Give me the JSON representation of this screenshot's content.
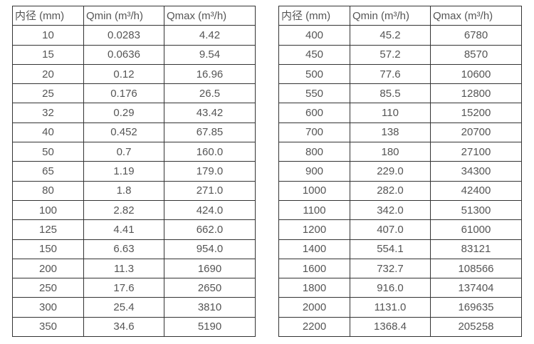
{
  "colors": {
    "background": "#ffffff",
    "border": "#333333",
    "text": "#555555"
  },
  "tables": [
    {
      "name": "flow-range-small-diameters",
      "headers": [
        "内径 (mm)",
        "Qmin (m³/h)",
        "Qmax (m³/h)"
      ],
      "rows": [
        [
          "10",
          "0.0283",
          "4.42"
        ],
        [
          "15",
          "0.0636",
          "9.54"
        ],
        [
          "20",
          "0.12",
          "16.96"
        ],
        [
          "25",
          "0.176",
          "26.5"
        ],
        [
          "32",
          "0.29",
          "43.42"
        ],
        [
          "40",
          "0.452",
          "67.85"
        ],
        [
          "50",
          "0.7",
          "160.0"
        ],
        [
          "65",
          "1.19",
          "179.0"
        ],
        [
          "80",
          "1.8",
          "271.0"
        ],
        [
          "100",
          "2.82",
          "424.0"
        ],
        [
          "125",
          "4.41",
          "662.0"
        ],
        [
          "150",
          "6.63",
          "954.0"
        ],
        [
          "200",
          "11.3",
          "1690"
        ],
        [
          "250",
          "17.6",
          "2650"
        ],
        [
          "300",
          "25.4",
          "3810"
        ],
        [
          "350",
          "34.6",
          "5190"
        ]
      ]
    },
    {
      "name": "flow-range-large-diameters",
      "headers": [
        "内径 (mm)",
        "Qmin (m³/h)",
        "Qmax (m³/h)"
      ],
      "rows": [
        [
          "400",
          "45.2",
          "6780"
        ],
        [
          "450",
          "57.2",
          "8570"
        ],
        [
          "500",
          "77.6",
          "10600"
        ],
        [
          "550",
          "85.5",
          "12800"
        ],
        [
          "600",
          "110",
          "15200"
        ],
        [
          "700",
          "138",
          "20700"
        ],
        [
          "800",
          "180",
          "27100"
        ],
        [
          "900",
          "229.0",
          "34300"
        ],
        [
          "1000",
          "282.0",
          "42400"
        ],
        [
          "1100",
          "342.0",
          "51300"
        ],
        [
          "1200",
          "407.0",
          "61000"
        ],
        [
          "1400",
          "554.1",
          "83121"
        ],
        [
          "1600",
          "732.7",
          "108566"
        ],
        [
          "1800",
          "916.0",
          "137404"
        ],
        [
          "2000",
          "1131.0",
          "169635"
        ],
        [
          "2200",
          "1368.4",
          "205258"
        ]
      ]
    }
  ]
}
